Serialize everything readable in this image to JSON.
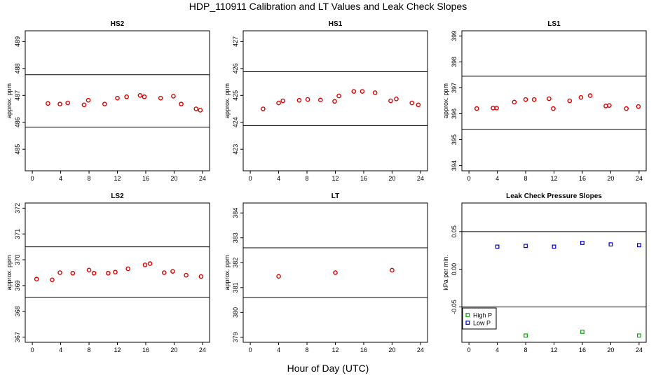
{
  "figure": {
    "title": "HDP_110911  Calibration and LT Values and Leak Check Slopes",
    "xlabel": "Hour of Day (UTC)"
  },
  "chart_data": [
    {
      "type": "scatter",
      "title": "HS2",
      "ylabel": "approx. ppm",
      "xlim": [
        -1,
        25
      ],
      "ylim": [
        484.2,
        489.4
      ],
      "xticks": [
        0,
        4,
        8,
        12,
        16,
        20,
        24
      ],
      "yticks": [
        485,
        486,
        487,
        488,
        489
      ],
      "hlines": [
        487.77,
        485.82
      ],
      "color": "#dd0000",
      "series": [
        {
          "points": [
            [
              2.2,
              486.7
            ],
            [
              3.9,
              486.68
            ],
            [
              5,
              486.72
            ],
            [
              7.3,
              486.65
            ],
            [
              7.9,
              486.82
            ],
            [
              10.2,
              486.68
            ],
            [
              12,
              486.9
            ],
            [
              13.3,
              486.95
            ],
            [
              15.2,
              487.0
            ],
            [
              15.8,
              486.95
            ],
            [
              18.1,
              486.9
            ],
            [
              19.9,
              486.97
            ],
            [
              21,
              486.68
            ],
            [
              23.1,
              486.5
            ],
            [
              23.7,
              486.45
            ]
          ]
        }
      ]
    },
    {
      "type": "scatter",
      "title": "HS1",
      "ylabel": "approx. ppm",
      "xlim": [
        -1,
        25
      ],
      "ylim": [
        422.2,
        427.4
      ],
      "xticks": [
        0,
        4,
        8,
        12,
        16,
        20,
        24
      ],
      "yticks": [
        423,
        424,
        425,
        426,
        427
      ],
      "hlines": [
        425.88,
        423.88
      ],
      "color": "#dd0000",
      "series": [
        {
          "points": [
            [
              1.8,
              424.5
            ],
            [
              4,
              424.72
            ],
            [
              4.6,
              424.8
            ],
            [
              6.9,
              424.82
            ],
            [
              8.1,
              424.85
            ],
            [
              9.9,
              424.83
            ],
            [
              11.9,
              424.78
            ],
            [
              12.5,
              424.98
            ],
            [
              14.6,
              425.15
            ],
            [
              15.8,
              425.15
            ],
            [
              17.6,
              425.1
            ],
            [
              19.8,
              424.8
            ],
            [
              20.6,
              424.87
            ],
            [
              22.8,
              424.72
            ],
            [
              23.7,
              424.65
            ]
          ]
        }
      ]
    },
    {
      "type": "scatter",
      "title": "LS1",
      "ylabel": "approx. ppm",
      "xlim": [
        -1,
        25
      ],
      "ylim": [
        393.8,
        399.2
      ],
      "xticks": [
        0,
        4,
        8,
        12,
        16,
        20,
        24
      ],
      "yticks": [
        394,
        395,
        396,
        397,
        398,
        399
      ],
      "hlines": [
        397.45,
        395.4
      ],
      "color": "#dd0000",
      "series": [
        {
          "points": [
            [
              1.1,
              396.2
            ],
            [
              3.4,
              396.22
            ],
            [
              3.9,
              396.22
            ],
            [
              6.4,
              396.45
            ],
            [
              8,
              396.55
            ],
            [
              9.2,
              396.55
            ],
            [
              11.3,
              396.58
            ],
            [
              11.9,
              396.2
            ],
            [
              14.2,
              396.5
            ],
            [
              15.8,
              396.63
            ],
            [
              17.1,
              396.7
            ],
            [
              19.3,
              396.3
            ],
            [
              19.8,
              396.32
            ],
            [
              22.2,
              396.2
            ],
            [
              23.9,
              396.28
            ]
          ]
        }
      ]
    },
    {
      "type": "scatter",
      "title": "LS2",
      "ylabel": "approx. ppm",
      "xlim": [
        -1,
        25
      ],
      "ylim": [
        366.8,
        372.2
      ],
      "xticks": [
        0,
        4,
        8,
        12,
        16,
        20,
        24
      ],
      "yticks": [
        367,
        368,
        369,
        370,
        371,
        372
      ],
      "hlines": [
        370.5,
        368.55
      ],
      "color": "#dd0000",
      "series": [
        {
          "points": [
            [
              0.6,
              369.25
            ],
            [
              2.8,
              369.22
            ],
            [
              3.9,
              369.5
            ],
            [
              5.7,
              369.48
            ],
            [
              8,
              369.6
            ],
            [
              8.7,
              369.48
            ],
            [
              10.7,
              369.48
            ],
            [
              11.7,
              369.52
            ],
            [
              13.5,
              369.65
            ],
            [
              15.9,
              369.8
            ],
            [
              16.6,
              369.85
            ],
            [
              18.6,
              369.5
            ],
            [
              19.8,
              369.55
            ],
            [
              21.7,
              369.4
            ],
            [
              23.8,
              369.35
            ]
          ]
        }
      ]
    },
    {
      "type": "scatter",
      "title": "LT",
      "ylabel": "approx. ppm",
      "xlim": [
        -1,
        25
      ],
      "ylim": [
        378.8,
        384.4
      ],
      "xticks": [
        0,
        4,
        8,
        12,
        16,
        20,
        24
      ],
      "yticks": [
        379,
        380,
        381,
        382,
        383,
        384
      ],
      "hlines": [
        382.6,
        380.6
      ],
      "color": "#dd0000",
      "series": [
        {
          "points": [
            [
              4,
              381.45
            ],
            [
              12,
              381.6
            ],
            [
              20,
              381.7
            ]
          ]
        }
      ]
    },
    {
      "type": "scatter",
      "title": "Leak Check Pressure Slopes",
      "ylabel": "kPa per min.",
      "xlim": [
        -1,
        25
      ],
      "ylim": [
        -0.097,
        0.088
      ],
      "xticks": [
        0,
        4,
        8,
        12,
        16,
        20,
        24
      ],
      "yticks": [
        -0.05,
        0.0,
        0.05
      ],
      "ytick_labels": [
        "-0.05",
        "0.00",
        "0.05"
      ],
      "hlines": [
        0.05,
        -0.05
      ],
      "legend_position": "bottom-left",
      "series": [
        {
          "name": "High P",
          "color": "#00aa00",
          "points": [
            [
              8,
              -0.088
            ],
            [
              16,
              -0.083
            ],
            [
              24,
              -0.088
            ]
          ]
        },
        {
          "name": "Low P",
          "color": "#0000cc",
          "points": [
            [
              4,
              0.03
            ],
            [
              8,
              0.031
            ],
            [
              12,
              0.03
            ],
            [
              16,
              0.035
            ],
            [
              20,
              0.033
            ],
            [
              24,
              0.032
            ]
          ]
        }
      ]
    }
  ]
}
